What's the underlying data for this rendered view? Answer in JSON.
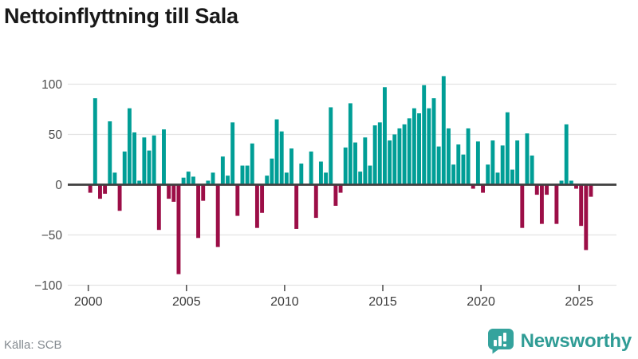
{
  "header": {
    "title": "Nettoinflyttning till Sala"
  },
  "chart_data": {
    "type": "bar",
    "title": "Nettoinflyttning till Sala",
    "frequency": "quarterly",
    "start_quarter": "2000-Q1",
    "end_quarter": "2025-Q3",
    "values": [
      -8,
      86,
      -14,
      -9,
      63,
      12,
      -26,
      33,
      76,
      52,
      4,
      47,
      34,
      49,
      -45,
      55,
      -14,
      -17,
      -89,
      7,
      13,
      8,
      -53,
      -16,
      4,
      12,
      -62,
      28,
      9,
      62,
      -31,
      19,
      19,
      41,
      -43,
      -28,
      9,
      26,
      65,
      53,
      12,
      36,
      -44,
      21,
      0,
      33,
      -33,
      23,
      12,
      77,
      -21,
      -8,
      37,
      81,
      42,
      13,
      47,
      19,
      59,
      62,
      97,
      44,
      50,
      56,
      60,
      66,
      76,
      71,
      99,
      76,
      86,
      38,
      108,
      56,
      20,
      40,
      30,
      56,
      -4,
      43,
      -8,
      20,
      44,
      12,
      39,
      72,
      15,
      44,
      -43,
      51,
      29,
      -10,
      -39,
      -10,
      0,
      -39,
      4,
      60,
      4,
      -4,
      -41,
      -65,
      -12
    ],
    "ylim": [
      -100,
      110
    ],
    "yticks": [
      {
        "value": 100,
        "label": "100"
      },
      {
        "value": 50,
        "label": "50"
      },
      {
        "value": 0,
        "label": "0"
      },
      {
        "value": -50,
        "label": "−50"
      },
      {
        "value": -100,
        "label": "−100"
      }
    ],
    "xticks": [
      2000,
      2005,
      2010,
      2015,
      2020,
      2025
    ],
    "grid": true,
    "legend": "none",
    "colors": {
      "positive": "#009E96",
      "negative": "#9C0E47",
      "zero_line": "#3f3f3f",
      "gridline": "#e3e3e3",
      "tick": "#555555",
      "axis_label": "#3c3c3c"
    }
  },
  "footer": {
    "source_label": "Källa: SCB",
    "brand_name": "Newsworthy",
    "brand_color": "#2f9c95"
  }
}
